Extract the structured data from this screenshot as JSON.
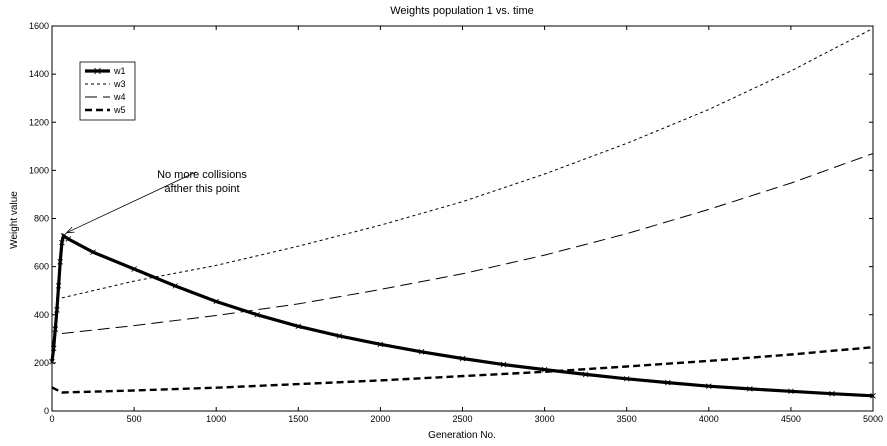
{
  "chart_data": {
    "type": "line",
    "title": "Weights population 1 vs. time",
    "xlabel": "Generation No.",
    "ylabel": "Weight value",
    "xlim": [
      0,
      5000
    ],
    "ylim": [
      0,
      1600
    ],
    "xticks": [
      0,
      500,
      1000,
      1500,
      2000,
      2500,
      3000,
      3500,
      4000,
      4500,
      5000
    ],
    "yticks": [
      0,
      200,
      400,
      600,
      800,
      1000,
      1200,
      1400,
      1600
    ],
    "grid": false,
    "legend_position": "top-left",
    "series": [
      {
        "name": "w1",
        "style": "solid-x-markers",
        "points": [
          [
            0,
            205
          ],
          [
            10,
            260
          ],
          [
            20,
            340
          ],
          [
            30,
            420
          ],
          [
            40,
            520
          ],
          [
            50,
            620
          ],
          [
            60,
            700
          ],
          [
            70,
            728
          ],
          [
            100,
            715
          ],
          [
            250,
            660
          ],
          [
            500,
            590
          ],
          [
            750,
            520
          ],
          [
            1000,
            455
          ],
          [
            1250,
            400
          ],
          [
            1500,
            352
          ],
          [
            1750,
            312
          ],
          [
            2000,
            277
          ],
          [
            2250,
            246
          ],
          [
            2500,
            218
          ],
          [
            2750,
            193
          ],
          [
            3000,
            172
          ],
          [
            3250,
            152
          ],
          [
            3500,
            134
          ],
          [
            3750,
            118
          ],
          [
            4000,
            103
          ],
          [
            4250,
            92
          ],
          [
            4500,
            82
          ],
          [
            4750,
            72
          ],
          [
            5000,
            63
          ]
        ]
      },
      {
        "name": "w3",
        "style": "short-dash",
        "points": [
          [
            60,
            470
          ],
          [
            500,
            540
          ],
          [
            1000,
            605
          ],
          [
            1500,
            685
          ],
          [
            2000,
            772
          ],
          [
            2500,
            870
          ],
          [
            3000,
            985
          ],
          [
            3500,
            1112
          ],
          [
            4000,
            1253
          ],
          [
            4500,
            1413
          ],
          [
            5000,
            1590
          ]
        ]
      },
      {
        "name": "w4",
        "style": "long-dash",
        "points": [
          [
            60,
            322
          ],
          [
            500,
            355
          ],
          [
            1000,
            397
          ],
          [
            1500,
            445
          ],
          [
            2000,
            505
          ],
          [
            2500,
            570
          ],
          [
            3000,
            648
          ],
          [
            3500,
            737
          ],
          [
            4000,
            838
          ],
          [
            4500,
            947
          ],
          [
            5000,
            1070
          ]
        ]
      },
      {
        "name": "w5",
        "style": "thick-dash",
        "points": [
          [
            0,
            98
          ],
          [
            60,
            77
          ],
          [
            500,
            85
          ],
          [
            1000,
            97
          ],
          [
            1500,
            112
          ],
          [
            2000,
            127
          ],
          [
            2500,
            145
          ],
          [
            3000,
            163
          ],
          [
            3500,
            185
          ],
          [
            4000,
            208
          ],
          [
            4500,
            235
          ],
          [
            5000,
            265
          ]
        ]
      }
    ],
    "annotation": {
      "lines": [
        "No more collisions",
        "afther this point"
      ],
      "target": [
        70,
        728
      ]
    }
  }
}
